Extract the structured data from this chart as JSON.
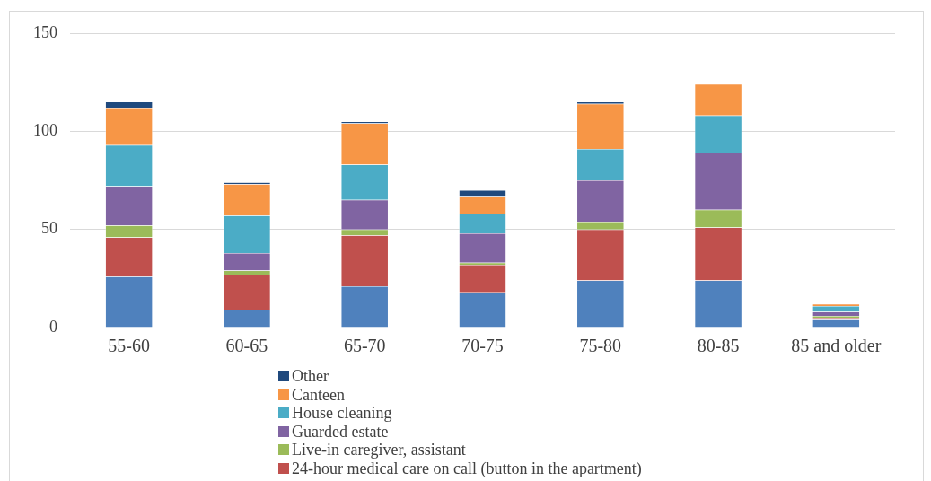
{
  "chart_data": {
    "type": "bar",
    "stacked": true,
    "categories": [
      "55-60",
      "60-65",
      "65-70",
      "70-75",
      "75-80",
      "80-85",
      "85 and older"
    ],
    "series": [
      {
        "color": "#4f81bd",
        "values": [
          26,
          9,
          21,
          18,
          24,
          24,
          4
        ]
      },
      {
        "name": "24-hour medical care on call (button in the apartment)",
        "color": "#c0504d",
        "values": [
          20,
          18,
          26,
          14,
          26,
          27,
          1
        ]
      },
      {
        "name": "Live-in caregiver, assistant",
        "color": "#9bbb59",
        "values": [
          6,
          2,
          3,
          1,
          4,
          9,
          1
        ]
      },
      {
        "name": "Guarded estate",
        "color": "#8064a2",
        "values": [
          20,
          9,
          15,
          15,
          21,
          29,
          2
        ]
      },
      {
        "name": "House cleaning",
        "color": "#4bacc6",
        "values": [
          21,
          19,
          18,
          10,
          16,
          19,
          3
        ]
      },
      {
        "name": "Canteen",
        "color": "#f79646",
        "values": [
          19,
          16,
          21,
          9,
          23,
          16,
          1
        ]
      },
      {
        "name": "Other",
        "color": "#1f497d",
        "values": [
          3,
          1,
          1,
          3,
          1,
          0,
          0
        ]
      }
    ],
    "ylim": [
      0,
      150
    ],
    "yticks": [
      0,
      50,
      100,
      150
    ],
    "grid": "y",
    "legend": "bottom"
  }
}
